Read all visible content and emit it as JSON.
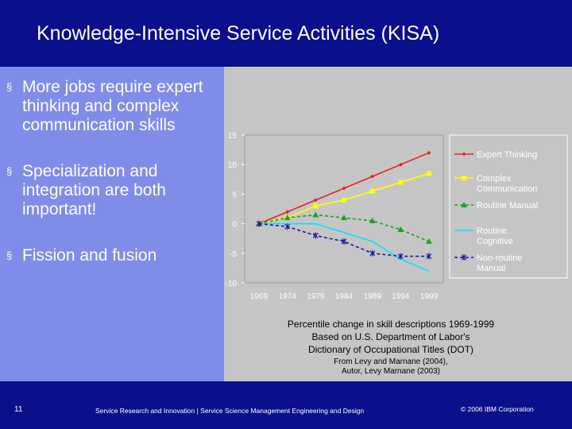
{
  "slide": {
    "title": "Knowledge-Intensive Service Activities (KISA)",
    "bullets": [
      "More jobs require expert thinking and complex communication skills",
      "Specialization and integration are both important!",
      "Fission and fusion"
    ],
    "bullet_marker": "§",
    "caption_main_1": "Percentile change in skill descriptions 1969-1999",
    "caption_main_2": "Based on U.S. Department of Labor's",
    "caption_main_3": "Dictionary of Occupational Titles (DOT)",
    "caption_source_1": "From Levy and Marnane (2004),",
    "caption_source_2": "Autor, Levy Marnane (2003)",
    "footer_page": "11",
    "footer_center": "Service Research and Innovation  |  Service Science Management Engineering and Design",
    "footer_copyright": "© 2006 IBM Corporation"
  },
  "chart_data": {
    "type": "line",
    "x": [
      "1969",
      "1974",
      "1979",
      "1984",
      "1989",
      "1994",
      "1999"
    ],
    "ylim": [
      -10,
      15
    ],
    "yticks": [
      "15",
      "10",
      "5",
      "0",
      "-5",
      "-10"
    ],
    "legend_position": "right",
    "series": [
      {
        "name": "Expert Thinking",
        "color": "#e8231e",
        "marker": "diamond",
        "dash": "solid",
        "values": [
          0,
          2,
          4,
          6,
          8,
          10,
          12
        ]
      },
      {
        "name": "Complex Communication",
        "color": "#ffff00",
        "marker": "square",
        "dash": "solid",
        "values": [
          0,
          1,
          3,
          4,
          5.5,
          7,
          8.5
        ]
      },
      {
        "name": "Routine Manual",
        "color": "#20a020",
        "marker": "triangle",
        "dash": "dashed",
        "values": [
          0,
          1,
          1.5,
          1,
          0.5,
          -1,
          -3
        ]
      },
      {
        "name": "Routine Cognitive",
        "color": "#00e5ff",
        "marker": "none",
        "dash": "solid",
        "values": [
          0,
          0,
          0,
          -1.5,
          -3,
          -6,
          -8
        ]
      },
      {
        "name": "Non-routine Manual",
        "color": "#1a1aa0",
        "marker": "asterisk",
        "dash": "dashed",
        "values": [
          0,
          -0.5,
          -2,
          -3,
          -5,
          -5.5,
          -5.5
        ]
      }
    ]
  }
}
